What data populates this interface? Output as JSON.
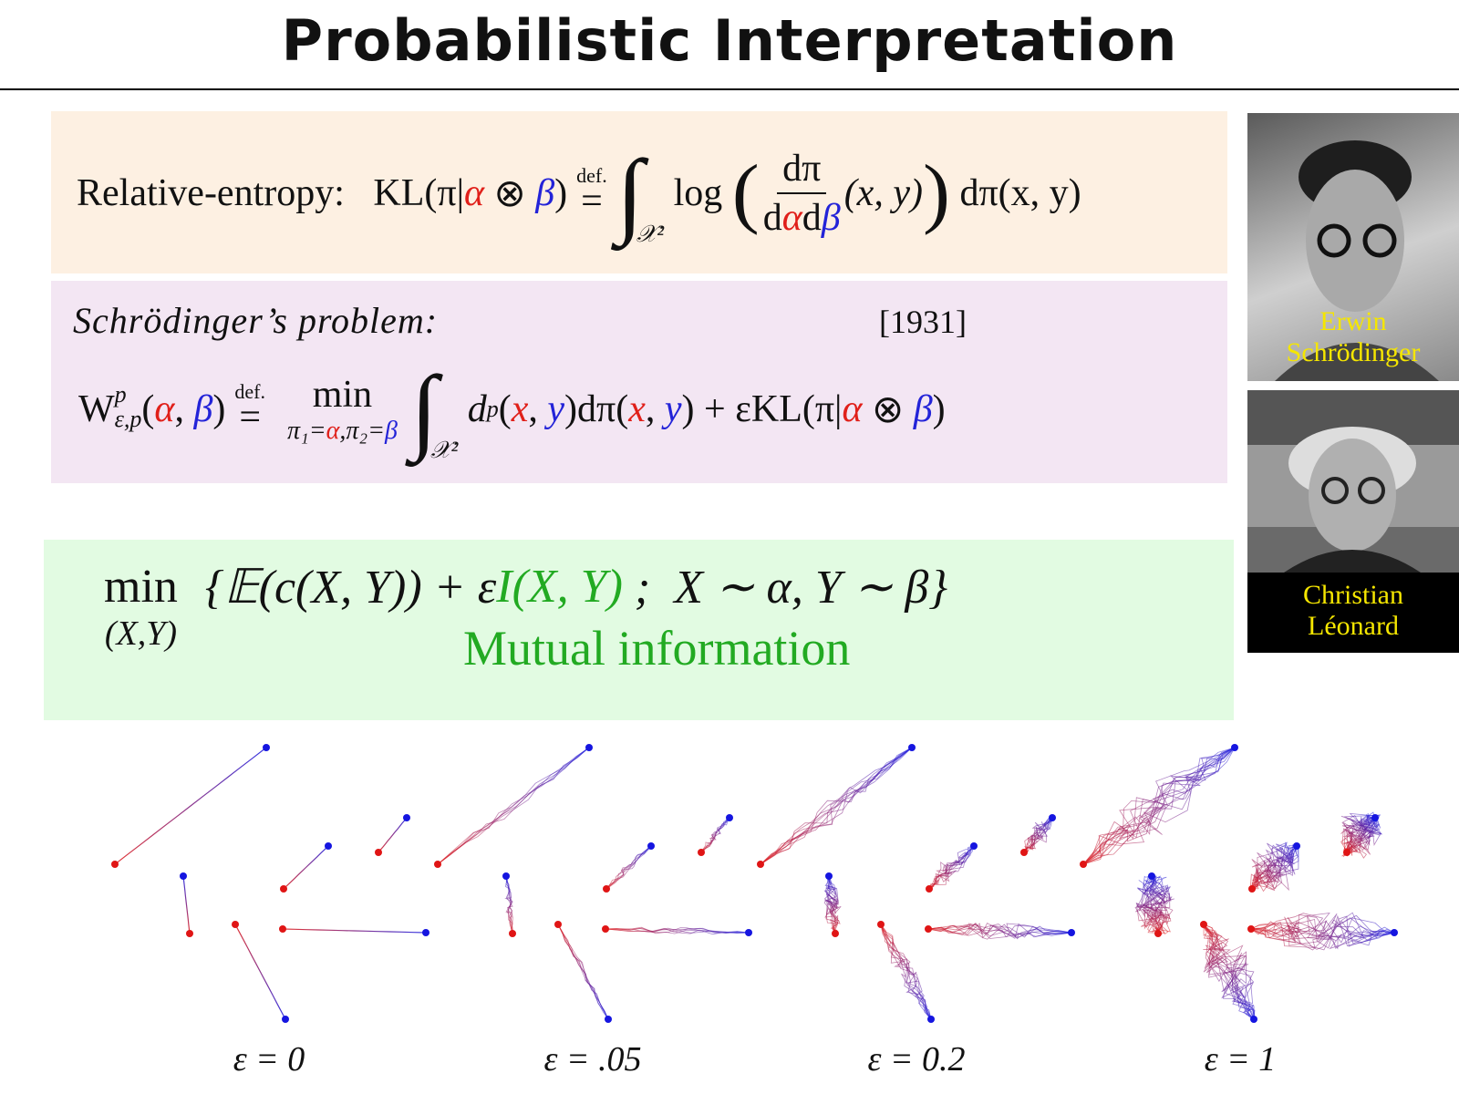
{
  "header": {
    "title": "Probabilistic Interpretation"
  },
  "relative_entropy": {
    "label": "Relative-entropy:",
    "formula": [
      "KL(π|",
      "α",
      " ⊗ ",
      "β",
      ")",
      "def.",
      "=",
      "∫",
      "𝒳²",
      " log ",
      "(",
      "dπ",
      "d",
      "α",
      "d",
      "β",
      "(x, y)",
      ")",
      " dπ(x, y)"
    ]
  },
  "schrodinger": {
    "label": "Schrödinger’s problem:",
    "year": "[1931]",
    "formula": [
      "W",
      "p",
      "ε,p",
      "(",
      "α",
      ", ",
      "β",
      ")",
      "def.",
      "=",
      "min",
      "π₁=",
      "α",
      ",π₂=",
      "β",
      "∫",
      "𝒳²",
      " d",
      "p",
      "(",
      "x",
      ", ",
      "y",
      ")dπ(",
      "x",
      ", ",
      "y",
      ") + εKL(π|",
      "α",
      " ⊗ ",
      "β",
      ")"
    ]
  },
  "mutual": {
    "formula": [
      "min",
      "(X,Y)",
      "{𝔼(c(X, Y)) + ε",
      "I(X, Y)",
      " ;  X ∼ α, Y ∼ β}"
    ],
    "note": "Mutual information"
  },
  "portraits": [
    {
      "caption": [
        "Erwin",
        "Schrödinger"
      ]
    },
    {
      "caption": [
        "Christian",
        "Léonard"
      ]
    }
  ],
  "panels": [
    {
      "label": "ε = 0"
    },
    {
      "label": "ε = .05"
    },
    {
      "label": "ε = 0.2"
    },
    {
      "label": "ε = 1"
    }
  ]
}
